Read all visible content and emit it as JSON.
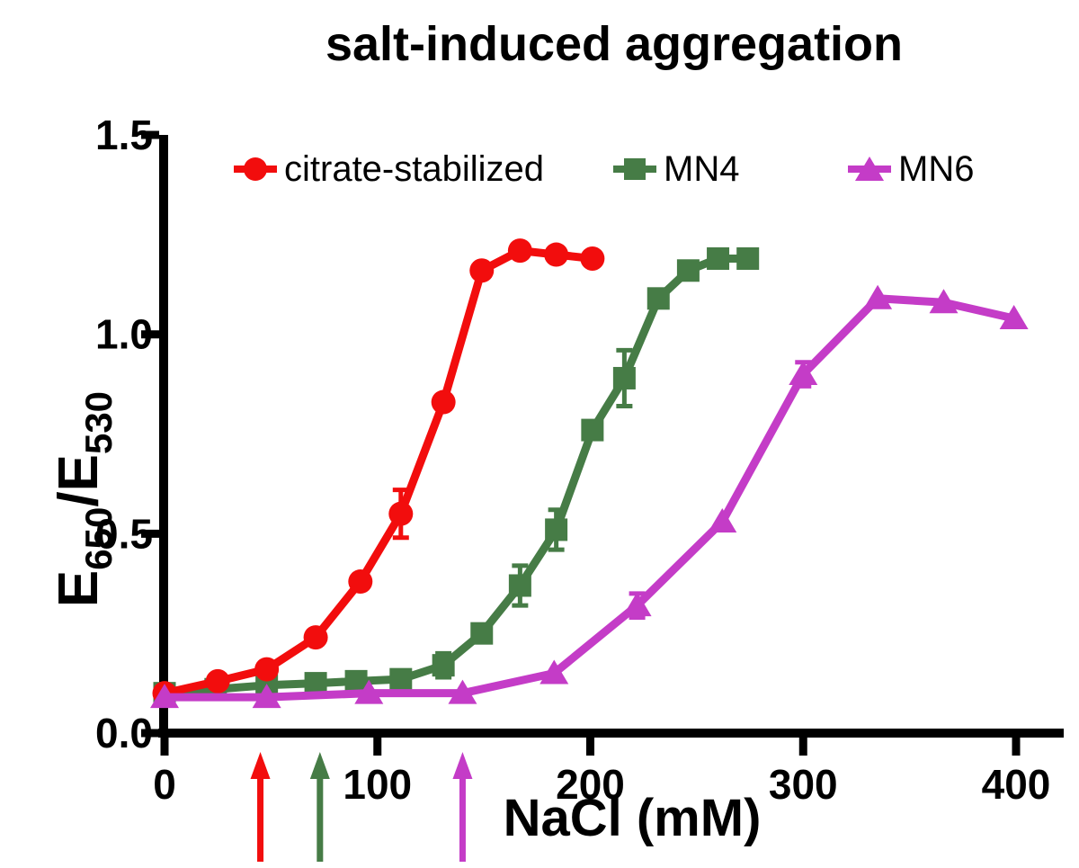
{
  "title": "salt-induced aggregation",
  "x_axis_label": "NaCl (mM)",
  "y_axis_label_parts": {
    "base1": "E",
    "sub1": "650",
    "base2": "/E",
    "sub2": "530"
  },
  "colors": {
    "citrate": "#f20d0d",
    "mn4": "#467c46",
    "mn6": "#c43cc7",
    "axis": "#000000",
    "background": "#ffffff"
  },
  "chart_data": {
    "type": "line",
    "title": "salt-induced aggregation",
    "xlabel": "NaCl (mM)",
    "ylabel": "E650/E530",
    "xlim": [
      0,
      422
    ],
    "ylim": [
      0,
      1.5
    ],
    "grid": "off",
    "legend_position": "top-inside",
    "x_tick_labels": [
      "0",
      "100",
      "200",
      "300",
      "400"
    ],
    "x_tick_values": [
      0,
      100,
      200,
      300,
      400
    ],
    "y_tick_labels": [
      "0.0",
      "0.5",
      "1.0",
      "1.5"
    ],
    "y_tick_values": [
      0,
      0.5,
      1.0,
      1.5
    ],
    "series": [
      {
        "name": "MN4",
        "color": "#467c46",
        "marker": "square",
        "x": [
          0,
          24,
          48,
          71,
          90,
          111,
          131,
          149,
          167,
          184,
          201,
          216,
          232,
          246,
          260,
          274
        ],
        "y": [
          0.1,
          0.11,
          0.12,
          0.125,
          0.13,
          0.135,
          0.17,
          0.25,
          0.37,
          0.51,
          0.76,
          0.89,
          1.09,
          1.16,
          1.19,
          1.19
        ],
        "err": [
          0,
          0,
          0.015,
          0,
          0,
          0,
          0.03,
          0.015,
          0.05,
          0.05,
          0,
          0.07,
          0,
          0.02,
          0,
          0
        ]
      },
      {
        "name": "citrate-stabilized",
        "color": "#f20d0d",
        "marker": "circle",
        "x": [
          0,
          25,
          48,
          71,
          92,
          111,
          131,
          149,
          167,
          184,
          201
        ],
        "y": [
          0.1,
          0.13,
          0.16,
          0.24,
          0.38,
          0.55,
          0.83,
          1.16,
          1.21,
          1.2,
          1.19
        ],
        "err": [
          0,
          0,
          0,
          0,
          0,
          0.06,
          0,
          0,
          0,
          0,
          0
        ]
      },
      {
        "name": "MN6",
        "color": "#c43cc7",
        "marker": "triangle",
        "x": [
          0,
          48,
          96,
          140,
          183,
          222,
          262,
          300,
          335,
          366,
          399
        ],
        "y": [
          0.09,
          0.09,
          0.1,
          0.1,
          0.15,
          0.32,
          0.53,
          0.9,
          1.09,
          1.08,
          1.04
        ],
        "err": [
          0,
          0,
          0,
          0,
          0,
          0.03,
          0,
          0.03,
          0,
          0,
          0
        ]
      }
    ],
    "legend_order": [
      "citrate-stabilized",
      "MN4",
      "MN6"
    ],
    "annotations": [
      {
        "kind": "up-arrow",
        "x": 45,
        "color": "#f20d0d"
      },
      {
        "kind": "up-arrow",
        "x": 73,
        "color": "#467c46"
      },
      {
        "kind": "up-arrow",
        "x": 140,
        "color": "#c43cc7"
      }
    ]
  }
}
